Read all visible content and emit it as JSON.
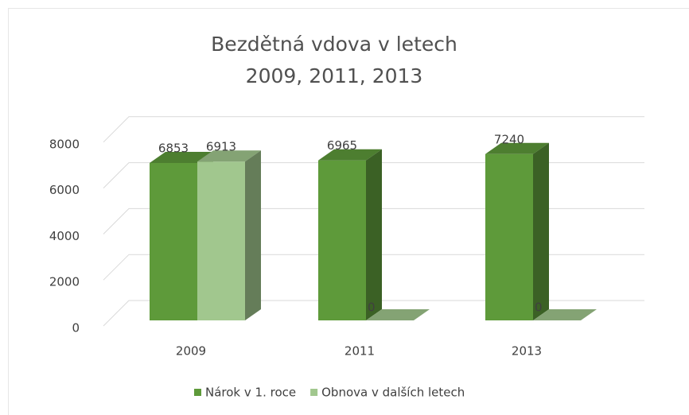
{
  "chart_data": {
    "type": "bar3d",
    "title": "Bezdětná vdova v letech 2009, 2011, 2013",
    "categories": [
      "2009",
      "2011",
      "2013"
    ],
    "series": [
      {
        "name": "Nárok v 1. roce",
        "color": "#5e9a3a",
        "values": [
          6853,
          6965,
          7240
        ]
      },
      {
        "name": "Obnova v dalších letech",
        "color": "#a1c78e",
        "values": [
          6913,
          0,
          0
        ]
      }
    ],
    "ylim": [
      0,
      8000
    ],
    "yticks": [
      0,
      2000,
      4000,
      6000,
      8000
    ],
    "grid": true,
    "legend": "bottom"
  }
}
